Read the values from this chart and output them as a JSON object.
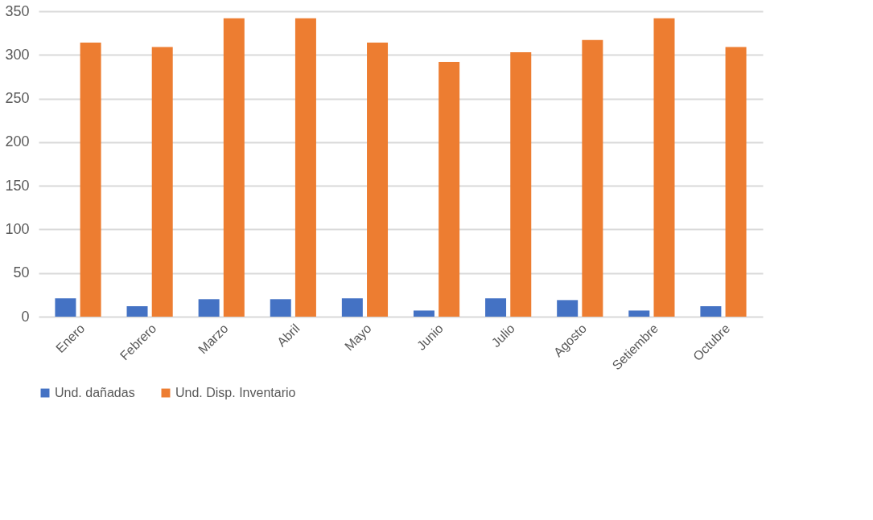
{
  "chart_data": {
    "type": "bar",
    "categories": [
      "Enero",
      "Febrero",
      "Marzo",
      "Abril",
      "Mayo",
      "Junio",
      "Julio",
      "Agosto",
      "Setiembre",
      "Octubre"
    ],
    "series": [
      {
        "name": "Und. dañadas",
        "color": "#4472c4",
        "values": [
          21,
          12,
          20,
          20,
          21,
          7,
          21,
          19,
          7,
          12
        ]
      },
      {
        "name": "Und. Disp. Inventario",
        "color": "#ed7d31",
        "values": [
          314,
          309,
          342,
          342,
          314,
          292,
          303,
          317,
          342,
          309
        ]
      }
    ],
    "ylim": [
      0,
      350
    ],
    "yticks": [
      0,
      50,
      100,
      150,
      200,
      250,
      300,
      350
    ],
    "grid": "y",
    "legend": "bottom"
  }
}
